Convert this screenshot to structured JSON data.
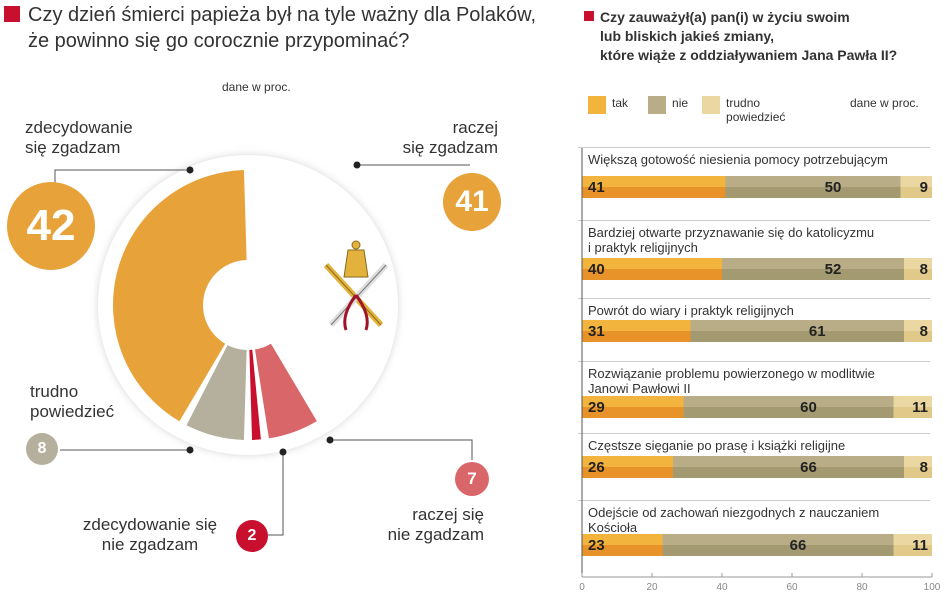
{
  "left": {
    "title_line1": "Czy dzień śmierci papieża był na tyle ważny dla Polaków,",
    "title_line2": "że powinno się go corocznie przypominać?",
    "unit": "dane w proc."
  },
  "right": {
    "title_line1": "Czy zauważył(a) pan(i) w życiu swoim",
    "title_line2": "lub bliskich jakieś zmiany,",
    "title_line3": "które wiąże z oddziaływaniem Jana Pawła II?",
    "unit": "dane w proc.",
    "legend": [
      "tak",
      "nie",
      "trudno",
      "powiedzieć"
    ]
  },
  "colors": {
    "accent": "#c8102e",
    "orange": "#e8a23a",
    "gray": "#b5b09e",
    "red": "#d9676a",
    "crimson": "#c8102e",
    "tak": "#f2b43c",
    "tak_dark": "#e8922a",
    "nie": "#b8ad86",
    "nie_dark": "#a49a72",
    "trudno": "#ead7a2",
    "trudno_dark": "#e1c98a"
  },
  "chart_data": [
    {
      "type": "pie",
      "donut": true,
      "unit": "dane w proc.",
      "slices": [
        {
          "label_line1": "raczej",
          "label_line2": "się zgadzam",
          "value": 41,
          "color": "#ffffff"
        },
        {
          "label_line1": "raczej się",
          "label_line2": "nie zgadzam",
          "value": 7,
          "color": "#d9676a"
        },
        {
          "label_line1": "zdecydowanie się",
          "label_line2": "nie zgadzam",
          "value": 2,
          "color": "#c8102e"
        },
        {
          "label_line1": "trudno",
          "label_line2": "powiedzieć",
          "value": 8,
          "color": "#b5b09e"
        },
        {
          "label_line1": "zdecydowanie",
          "label_line2": "się zgadzam",
          "value": 42,
          "color": "#e8a23a"
        }
      ]
    },
    {
      "type": "bar",
      "stacked": true,
      "orientation": "horizontal",
      "xlim": [
        0,
        100
      ],
      "xticks": [
        "0",
        "20",
        "40",
        "60",
        "80",
        "100"
      ],
      "series_names": [
        "tak",
        "nie",
        "trudno powiedzieć"
      ],
      "categories": [
        {
          "line1": "Większą gotowość niesienia pomocy potrzebującym",
          "line2": "",
          "values": [
            41,
            50,
            9
          ]
        },
        {
          "line1": "Bardziej otwarte przyznawanie się do katolicyzmu",
          "line2": "i praktyk religijnych",
          "values": [
            40,
            52,
            8
          ]
        },
        {
          "line1": "Powrót do wiary i praktyk religijnych",
          "line2": "",
          "values": [
            31,
            61,
            8
          ]
        },
        {
          "line1": "Rozwiązanie problemu powierzonego w modlitwie",
          "line2": "Janowi Pawłowi II",
          "values": [
            29,
            60,
            11
          ]
        },
        {
          "line1": "Częstsze sięganie po prasę  i książki religijne",
          "line2": "",
          "values": [
            26,
            66,
            8
          ]
        },
        {
          "line1": "Odejście od zachowań niezgodnych z nauczaniem",
          "line2": "Kościoła",
          "values": [
            23,
            66,
            11
          ]
        }
      ]
    }
  ]
}
